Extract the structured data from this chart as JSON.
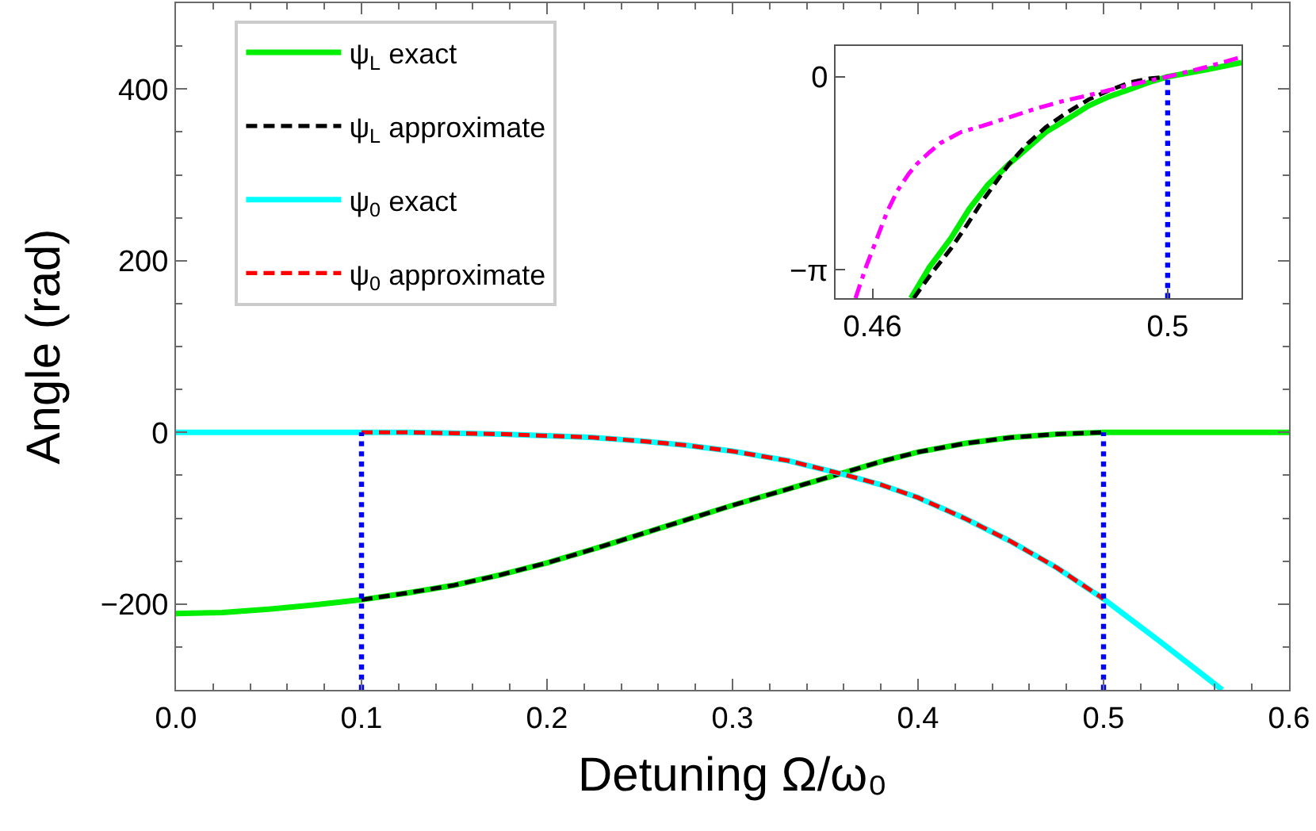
{
  "chart_data": [
    {
      "type": "line",
      "xlabel": "Detuning Ω/ω₀",
      "ylabel": "Angle (rad)",
      "xlim": [
        0,
        0.6
      ],
      "ylim": [
        -300,
        500
      ],
      "legend": "top left",
      "xticks": [
        {
          "value": 0,
          "label": "0.0"
        },
        {
          "value": 0.02,
          "label": null
        },
        {
          "value": 0.04,
          "label": null
        },
        {
          "value": 0.06,
          "label": null
        },
        {
          "value": 0.08,
          "label": null
        },
        0.1,
        {
          "value": 0.12,
          "label": null
        },
        {
          "value": 0.14,
          "label": null
        },
        {
          "value": 0.16,
          "label": null
        },
        {
          "value": 0.18,
          "label": null
        },
        0.2,
        {
          "value": 0.22,
          "label": null
        },
        {
          "value": 0.24,
          "label": null
        },
        {
          "value": 0.26,
          "label": null
        },
        {
          "value": 0.28,
          "label": null
        },
        0.3,
        {
          "value": 0.32,
          "label": null
        },
        {
          "value": 0.34,
          "label": null
        },
        {
          "value": 0.36,
          "label": null
        },
        {
          "value": 0.38,
          "label": null
        },
        0.4,
        {
          "value": 0.42,
          "label": null
        },
        {
          "value": 0.44,
          "label": null
        },
        {
          "value": 0.46,
          "label": null
        },
        {
          "value": 0.48,
          "label": null
        },
        0.5,
        {
          "value": 0.52,
          "label": null
        },
        {
          "value": 0.54,
          "label": null
        },
        {
          "value": 0.56,
          "label": null
        },
        {
          "value": 0.58,
          "label": null
        },
        0.6
      ],
      "yticks": [
        {
          "value": -250,
          "label": null
        },
        {
          "value": -200,
          "label": "−200"
        },
        {
          "value": -150,
          "label": null
        },
        {
          "value": -100,
          "label": null
        },
        {
          "value": -50,
          "label": null
        },
        0,
        {
          "value": 50,
          "label": null
        },
        {
          "value": 100,
          "label": null
        },
        {
          "value": 150,
          "label": null
        },
        200,
        {
          "value": 250,
          "label": null
        },
        {
          "value": 300,
          "label": null
        },
        {
          "value": 350,
          "label": null
        },
        400,
        {
          "value": 450,
          "label": null
        }
      ],
      "series": [
        {
          "name": "ψ$_{L}$ exact",
          "color": "#00ee00",
          "line_style": "solid",
          "x": [
            0,
            0.025,
            0.05,
            0.075,
            0.1,
            0.125,
            0.15,
            0.175,
            0.2,
            0.225,
            0.25,
            0.275,
            0.3,
            0.33,
            0.36,
            0.38,
            0.4,
            0.425,
            0.45,
            0.475,
            0.5,
            0.55,
            0.6
          ],
          "values": [
            -211,
            -210,
            -206,
            -201,
            -195,
            -187,
            -178,
            -166,
            -152,
            -136,
            -119,
            -102,
            -85,
            -66,
            -47,
            -34,
            -23,
            -13,
            -6,
            -2,
            0,
            0,
            0
          ]
        },
        {
          "name": "ψ$_{L}$ approximate",
          "color": "#000000",
          "line_style": "dashed",
          "x": [
            0.1,
            0.125,
            0.15,
            0.175,
            0.2,
            0.225,
            0.25,
            0.275,
            0.3,
            0.33,
            0.36,
            0.38,
            0.4,
            0.425,
            0.45,
            0.475,
            0.5
          ],
          "values": [
            -195,
            -187,
            -178,
            -166,
            -152,
            -136,
            -119,
            -102,
            -85,
            -66,
            -47,
            -34,
            -23,
            -13,
            -6,
            -2,
            0
          ]
        },
        {
          "name": "ψ$_{0}$ exact",
          "color": "#00ffff",
          "line_style": "solid",
          "x": [
            0,
            0.05,
            0.1,
            0.125,
            0.15,
            0.175,
            0.2,
            0.225,
            0.25,
            0.275,
            0.3,
            0.33,
            0.36,
            0.38,
            0.4,
            0.425,
            0.45,
            0.475,
            0.5,
            0.53,
            0.564
          ],
          "values": [
            0,
            0,
            0,
            0,
            -1,
            -2,
            -4,
            -6,
            -10,
            -15,
            -22,
            -33,
            -49,
            -61,
            -76,
            -100,
            -127,
            -158,
            -194,
            -243,
            -300
          ]
        },
        {
          "name": "ψ$_{0}$ approximate",
          "color": "#ff0000",
          "line_style": "dashed",
          "x": [
            0.1,
            0.125,
            0.15,
            0.175,
            0.2,
            0.225,
            0.25,
            0.275,
            0.3,
            0.33,
            0.36,
            0.38,
            0.4,
            0.425,
            0.45,
            0.475,
            0.5
          ],
          "values": [
            0,
            0,
            -1,
            -2,
            -4,
            -6,
            -10,
            -15,
            -22,
            -33,
            -49,
            -61,
            -76,
            -100,
            -127,
            -158,
            -194
          ]
        },
        {
          "color": "#0000ff",
          "line_style": "dotted",
          "x": [
            0.1,
            0.1
          ],
          "values": [
            -300,
            0
          ]
        },
        {
          "color": "#0000ff",
          "line_style": "dotted",
          "x": [
            0.5,
            0.5
          ],
          "values": [
            -300,
            0
          ]
        }
      ]
    },
    {
      "type": "line",
      "xlim": [
        0.455,
        0.51
      ],
      "ylim": [
        -3.6,
        0.5
      ],
      "xticks": [
        0.46,
        0.5
      ],
      "yticks": [
        {
          "value": -3.14159,
          "label": "−π"
        },
        0
      ],
      "series": [
        {
          "color": "#00ee00",
          "line_style": "solid",
          "x": [
            0.4652,
            0.4677,
            0.4706,
            0.4731,
            0.4756,
            0.4785,
            0.4835,
            0.4864,
            0.4893,
            0.4921,
            0.495,
            0.4975,
            0.5,
            0.505,
            0.51
          ],
          "values": [
            -3.6,
            -3.1,
            -2.63,
            -2.15,
            -1.76,
            -1.42,
            -0.9,
            -0.69,
            -0.47,
            -0.32,
            -0.2,
            -0.09,
            0,
            0.11,
            0.23
          ]
        },
        {
          "color": "#000000",
          "line_style": "dashed",
          "x": [
            0.4656,
            0.4681,
            0.4706,
            0.4728,
            0.4749,
            0.4785,
            0.481,
            0.4835,
            0.4864,
            0.4893,
            0.4921,
            0.495,
            0.4975,
            0.5
          ],
          "values": [
            -3.6,
            -3.18,
            -2.8,
            -2.41,
            -2.02,
            -1.42,
            -1.09,
            -0.82,
            -0.58,
            -0.37,
            -0.22,
            -0.09,
            -0.03,
            0
          ]
        },
        {
          "color": "#ff00ff",
          "line_style": "dashdot",
          "x": [
            0.4577,
            0.4591,
            0.4606,
            0.462,
            0.4634,
            0.4649,
            0.466,
            0.4677,
            0.4692,
            0.472,
            0.4749,
            0.4785,
            0.4821,
            0.4857,
            0.4893,
            0.495,
            0.5,
            0.505,
            0.51
          ],
          "values": [
            -3.6,
            -3.1,
            -2.63,
            -2.19,
            -1.85,
            -1.58,
            -1.42,
            -1.23,
            -1.08,
            -0.9,
            -0.8,
            -0.66,
            -0.52,
            -0.4,
            -0.3,
            -0.13,
            0,
            0.15,
            0.32
          ]
        },
        {
          "color": "#0000ff",
          "line_style": "dotted",
          "x": [
            0.5,
            0.5
          ],
          "values": [
            -3.6,
            0
          ]
        }
      ]
    }
  ]
}
